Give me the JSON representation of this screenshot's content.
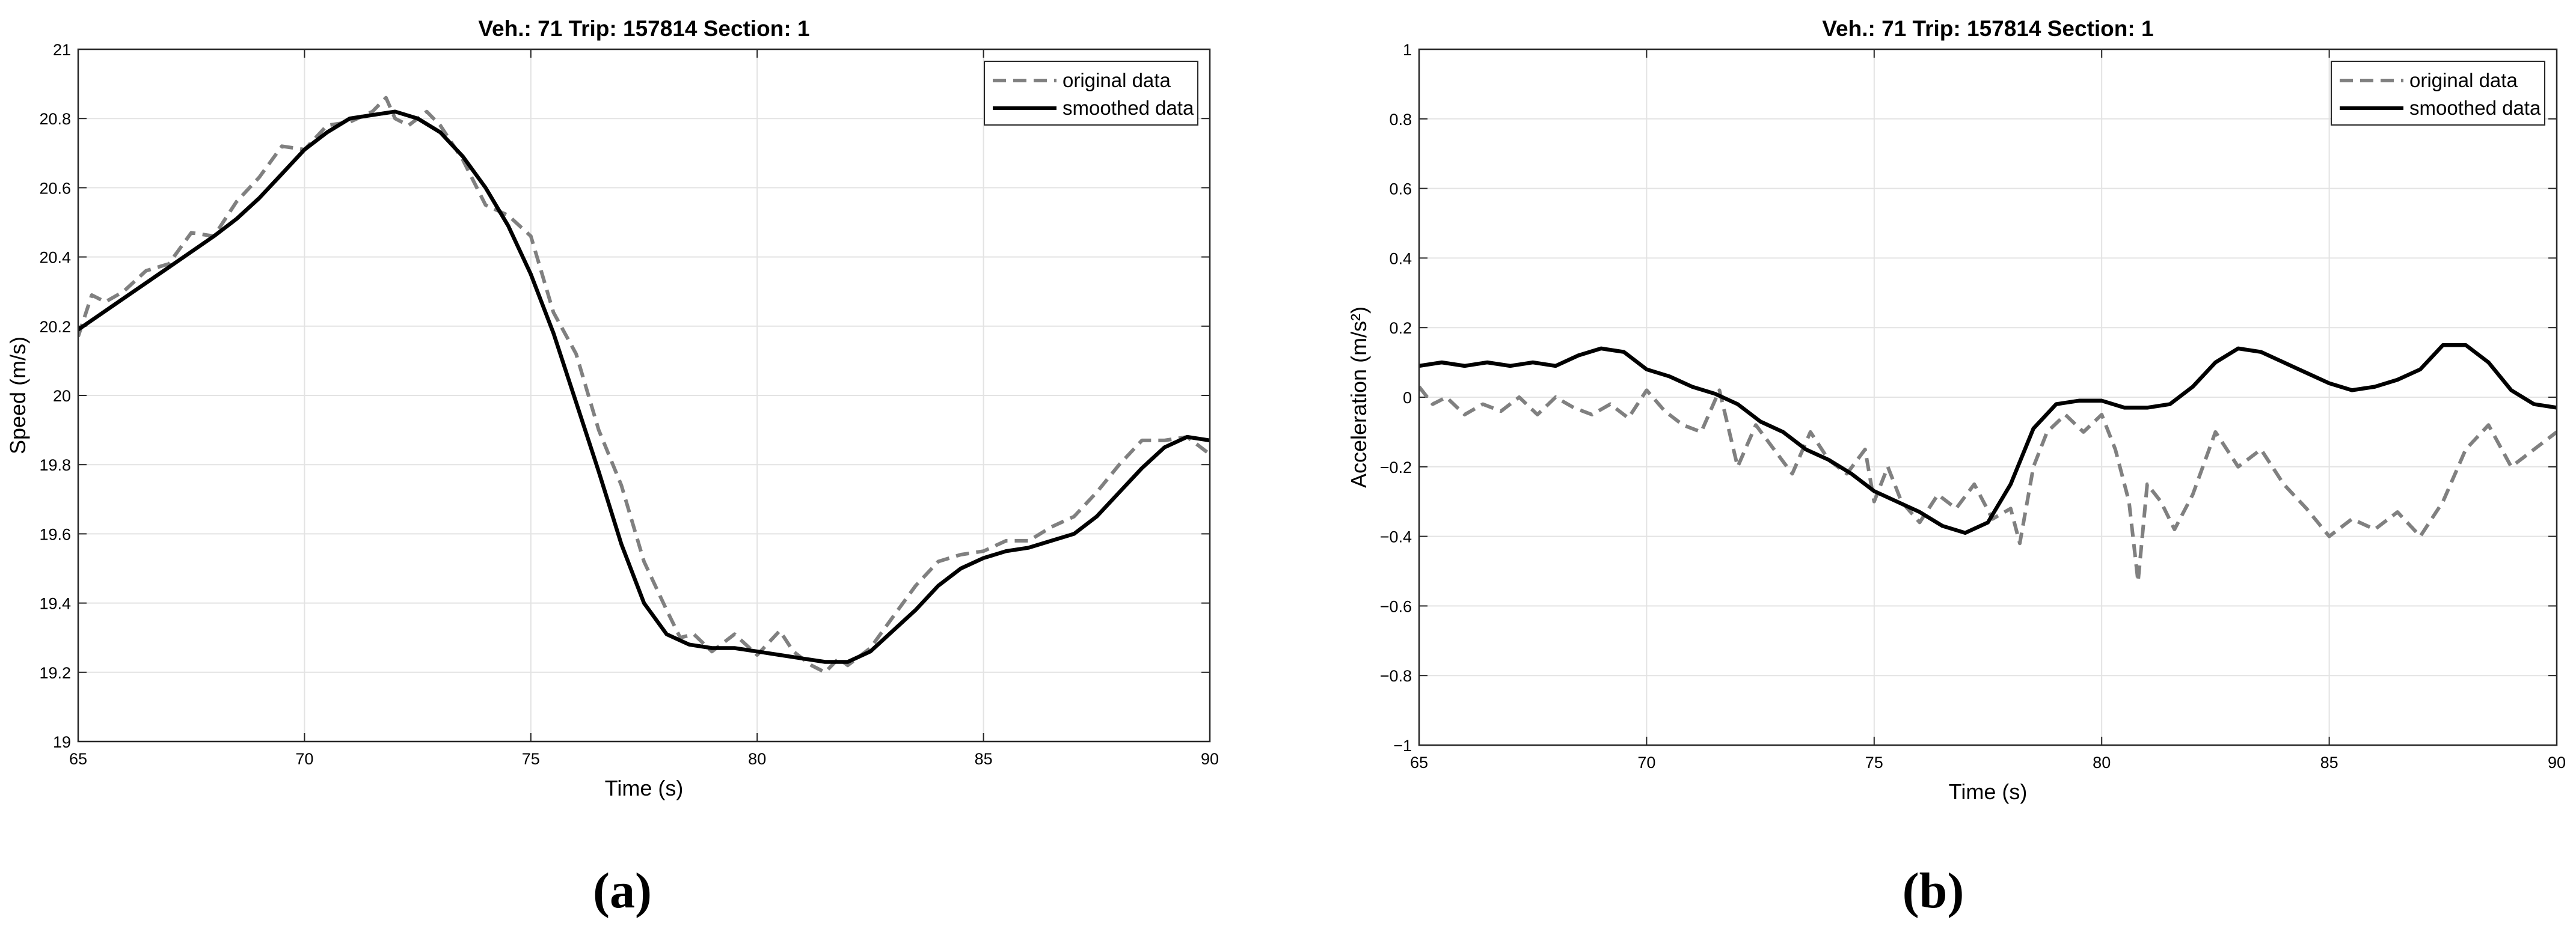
{
  "chart_data": [
    {
      "type": "line",
      "panel_label": "(a)",
      "title": "Veh.: 71  Trip: 157814  Section: 1",
      "xlabel": "Time (s)",
      "ylabel": "Speed (m/s)",
      "xlim": [
        65,
        90
      ],
      "ylim": [
        19,
        21
      ],
      "xticks": [
        "65",
        "70",
        "75",
        "80",
        "85",
        "90"
      ],
      "yticks": [
        "19",
        "19.2",
        "19.4",
        "19.6",
        "19.8",
        "20",
        "20.2",
        "20.4",
        "20.6",
        "20.8",
        "21"
      ],
      "grid": true,
      "legend_position": "top-right",
      "series": [
        {
          "name": "original data",
          "style": "dashed",
          "color": "#808080",
          "x": [
            65.0,
            65.3,
            65.6,
            66.0,
            66.5,
            67.0,
            67.5,
            68.0,
            68.5,
            69.0,
            69.5,
            70.0,
            70.5,
            71.0,
            71.5,
            71.8,
            72.0,
            72.3,
            72.7,
            73.0,
            73.5,
            74.0,
            74.5,
            75.0,
            75.5,
            76.0,
            76.5,
            77.0,
            77.5,
            78.0,
            78.3,
            78.6,
            79.0,
            79.5,
            80.0,
            80.5,
            80.8,
            81.2,
            81.5,
            81.8,
            82.0,
            82.5,
            83.0,
            83.5,
            84.0,
            84.5,
            85.0,
            85.5,
            86.0,
            86.5,
            87.0,
            87.5,
            88.0,
            88.5,
            89.0,
            89.5,
            90.0
          ],
          "y": [
            20.17,
            20.29,
            20.27,
            20.3,
            20.36,
            20.38,
            20.47,
            20.46,
            20.56,
            20.63,
            20.72,
            20.71,
            20.78,
            20.79,
            20.82,
            20.86,
            20.8,
            20.78,
            20.82,
            20.78,
            20.68,
            20.55,
            20.52,
            20.46,
            20.24,
            20.12,
            19.9,
            19.74,
            19.52,
            19.38,
            19.3,
            19.31,
            19.26,
            19.31,
            19.25,
            19.32,
            19.26,
            19.22,
            19.2,
            19.24,
            19.22,
            19.27,
            19.36,
            19.45,
            19.52,
            19.54,
            19.55,
            19.58,
            19.58,
            19.62,
            19.65,
            19.72,
            19.8,
            19.87,
            19.87,
            19.88,
            19.83
          ]
        },
        {
          "name": "smoothed data",
          "style": "solid",
          "color": "#000000",
          "x": [
            65.0,
            66.0,
            67.0,
            68.0,
            68.5,
            69.0,
            69.5,
            70.0,
            70.5,
            71.0,
            71.5,
            72.0,
            72.5,
            73.0,
            73.5,
            74.0,
            74.5,
            75.0,
            75.5,
            76.0,
            76.5,
            77.0,
            77.5,
            78.0,
            78.5,
            79.0,
            79.5,
            80.0,
            80.5,
            81.0,
            81.5,
            82.0,
            82.5,
            83.0,
            83.5,
            84.0,
            84.5,
            85.0,
            85.5,
            86.0,
            86.5,
            87.0,
            87.5,
            88.0,
            88.5,
            89.0,
            89.5,
            90.0
          ],
          "y": [
            20.19,
            20.28,
            20.37,
            20.46,
            20.51,
            20.57,
            20.64,
            20.71,
            20.76,
            20.8,
            20.81,
            20.82,
            20.8,
            20.76,
            20.69,
            20.6,
            20.49,
            20.35,
            20.18,
            19.98,
            19.78,
            19.57,
            19.4,
            19.31,
            19.28,
            19.27,
            19.27,
            19.26,
            19.25,
            19.24,
            19.23,
            19.23,
            19.26,
            19.32,
            19.38,
            19.45,
            19.5,
            19.53,
            19.55,
            19.56,
            19.58,
            19.6,
            19.65,
            19.72,
            19.79,
            19.85,
            19.88,
            19.87
          ]
        }
      ]
    },
    {
      "type": "line",
      "panel_label": "(b)",
      "title": "Veh.: 71  Trip: 157814  Section: 1",
      "xlabel": "Time (s)",
      "ylabel": "Acceleration (m/s²)",
      "xlim": [
        65,
        90
      ],
      "ylim": [
        -1,
        1
      ],
      "xticks": [
        "65",
        "70",
        "75",
        "80",
        "85",
        "90"
      ],
      "yticks": [
        "−1",
        "−0.8",
        "−0.6",
        "−0.4",
        "−0.2",
        "0",
        "0.2",
        "0.4",
        "0.6",
        "0.8",
        "1"
      ],
      "grid": true,
      "legend_position": "top-right",
      "series": [
        {
          "name": "original data",
          "style": "dashed",
          "color": "#808080",
          "x": [
            65.0,
            65.3,
            65.6,
            66.0,
            66.4,
            66.8,
            67.2,
            67.6,
            68.0,
            68.4,
            68.8,
            69.2,
            69.6,
            70.0,
            70.4,
            70.8,
            71.2,
            71.6,
            72.0,
            72.4,
            72.8,
            73.2,
            73.6,
            74.0,
            74.4,
            74.8,
            75.0,
            75.3,
            75.6,
            76.0,
            76.4,
            76.8,
            77.2,
            77.6,
            78.0,
            78.2,
            78.5,
            78.8,
            79.2,
            79.6,
            80.0,
            80.3,
            80.6,
            80.8,
            81.0,
            81.3,
            81.6,
            82.0,
            82.5,
            83.0,
            83.5,
            84.0,
            84.5,
            85.0,
            85.5,
            86.0,
            86.5,
            87.0,
            87.5,
            88.0,
            88.5,
            89.0,
            89.5,
            90.0
          ],
          "y": [
            0.03,
            -0.02,
            0.0,
            -0.05,
            -0.02,
            -0.04,
            0.0,
            -0.05,
            0.0,
            -0.03,
            -0.05,
            -0.02,
            -0.06,
            0.02,
            -0.04,
            -0.08,
            -0.1,
            0.02,
            -0.2,
            -0.08,
            -0.15,
            -0.22,
            -0.1,
            -0.18,
            -0.22,
            -0.15,
            -0.3,
            -0.2,
            -0.3,
            -0.36,
            -0.28,
            -0.32,
            -0.25,
            -0.35,
            -0.32,
            -0.42,
            -0.2,
            -0.1,
            -0.05,
            -0.1,
            -0.05,
            -0.15,
            -0.3,
            -0.53,
            -0.25,
            -0.3,
            -0.38,
            -0.28,
            -0.1,
            -0.2,
            -0.15,
            -0.25,
            -0.32,
            -0.4,
            -0.35,
            -0.38,
            -0.33,
            -0.4,
            -0.3,
            -0.15,
            -0.08,
            -0.2,
            -0.15,
            -0.1
          ]
        },
        {
          "name": "smoothed data",
          "style": "solid",
          "color": "#000000",
          "x": [
            65.0,
            65.5,
            66.0,
            66.5,
            67.0,
            67.5,
            68.0,
            68.5,
            69.0,
            69.5,
            70.0,
            70.5,
            71.0,
            71.5,
            72.0,
            72.5,
            73.0,
            73.5,
            74.0,
            74.5,
            75.0,
            75.5,
            76.0,
            76.5,
            77.0,
            77.5,
            78.0,
            78.5,
            79.0,
            79.5,
            80.0,
            80.5,
            81.0,
            81.5,
            82.0,
            82.5,
            83.0,
            83.5,
            84.0,
            84.5,
            85.0,
            85.5,
            86.0,
            86.5,
            87.0,
            87.5,
            88.0,
            88.5,
            89.0,
            89.5,
            90.0
          ],
          "y": [
            0.09,
            0.1,
            0.09,
            0.1,
            0.09,
            0.1,
            0.09,
            0.12,
            0.14,
            0.13,
            0.08,
            0.06,
            0.03,
            0.01,
            -0.02,
            -0.07,
            -0.1,
            -0.15,
            -0.18,
            -0.22,
            -0.27,
            -0.3,
            -0.33,
            -0.37,
            -0.39,
            -0.36,
            -0.25,
            -0.09,
            -0.02,
            -0.01,
            -0.01,
            -0.03,
            -0.03,
            -0.02,
            0.03,
            0.1,
            0.14,
            0.13,
            0.1,
            0.07,
            0.04,
            0.02,
            0.03,
            0.05,
            0.08,
            0.15,
            0.15,
            0.1,
            0.02,
            -0.02,
            -0.03
          ]
        }
      ]
    }
  ]
}
